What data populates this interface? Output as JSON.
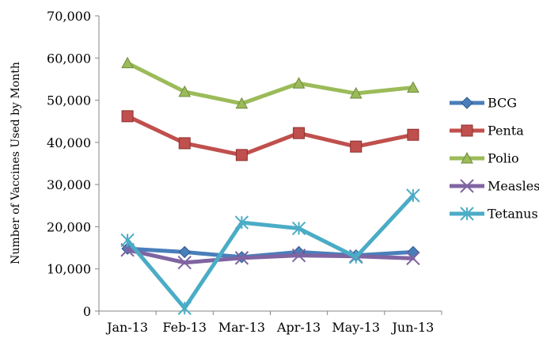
{
  "chart_data": {
    "type": "line",
    "title": "",
    "xlabel": "",
    "ylabel": "Number of Vaccines Used by Month",
    "categories": [
      "Jan-13",
      "Feb-13",
      "Mar-13",
      "Apr-13",
      "May-13",
      "Jun-13"
    ],
    "ylim": [
      0,
      70000
    ],
    "yticks": [
      0,
      10000,
      20000,
      30000,
      40000,
      50000,
      60000,
      70000
    ],
    "ytick_labels": [
      "0",
      "10,000",
      "20,000",
      "30,000",
      "40,000",
      "50,000",
      "60,000",
      "70,000"
    ],
    "grid": false,
    "legend_position": "right",
    "series": [
      {
        "name": "BCG",
        "color": "#4a7ebb",
        "marker": "diamond",
        "values": [
          14800,
          14000,
          12800,
          14000,
          13200,
          14000
        ]
      },
      {
        "name": "Penta",
        "color": "#c0504d",
        "marker": "square",
        "values": [
          46200,
          39800,
          37000,
          42200,
          39000,
          41800
        ]
      },
      {
        "name": "Polio",
        "color": "#9bbb59",
        "marker": "triangle",
        "values": [
          58800,
          52000,
          49200,
          54000,
          51600,
          53000
        ]
      },
      {
        "name": "Measles",
        "color": "#8064a2",
        "marker": "x",
        "values": [
          14500,
          11500,
          12600,
          13200,
          13000,
          12500
        ]
      },
      {
        "name": "Tetanus",
        "color": "#4bacc6",
        "marker": "star",
        "values": [
          16800,
          700,
          21000,
          19600,
          12800,
          27400
        ]
      }
    ]
  }
}
